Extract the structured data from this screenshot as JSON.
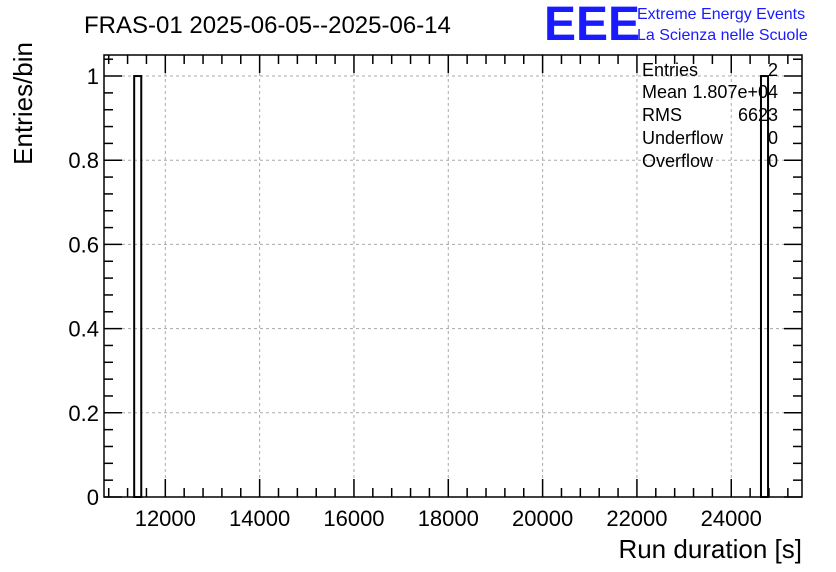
{
  "chart_data": {
    "type": "bar",
    "title": "FRAS-01 2025-06-05--2025-06-14",
    "xlabel": "Run duration [s]",
    "ylabel": "Entries/bin",
    "xlim": [
      10700,
      25500
    ],
    "ylim": [
      0,
      1.05
    ],
    "x_ticks": [
      12000,
      14000,
      16000,
      18000,
      20000,
      22000,
      24000
    ],
    "y_ticks": [
      0,
      0.2,
      0.4,
      0.6,
      0.8,
      1
    ],
    "grid": true,
    "bins": [
      {
        "x_low": 11340,
        "x_high": 11490,
        "value": 1
      },
      {
        "x_low": 24630,
        "x_high": 24780,
        "value": 1
      }
    ],
    "stats": {
      "entries_label": "Entries",
      "entries": "2",
      "mean_label": "Mean",
      "mean": "1.807e+04",
      "rms_label": "RMS",
      "rms": "6623",
      "underflow_label": "Underflow",
      "underflow": "0",
      "overflow_label": "Overflow",
      "overflow": "0"
    }
  },
  "logo": {
    "mark": "EEE",
    "line1": "Extreme Energy Events",
    "line2": "La Scienza nelle Scuole",
    "color": "#1a1aff"
  }
}
